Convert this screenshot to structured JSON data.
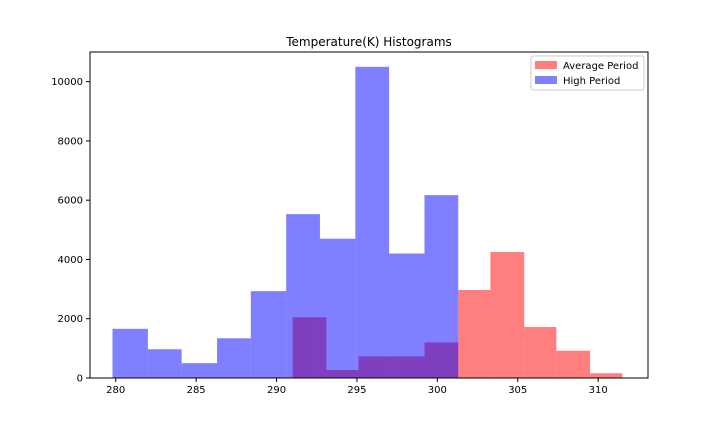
{
  "chart_data": {
    "type": "bar",
    "title": "Temperature(K) Histograms",
    "xlabel": "",
    "ylabel": "",
    "xlim": [
      278.4,
      313.1
    ],
    "ylim": [
      0,
      11000
    ],
    "grid": false,
    "legend_position": "top-right",
    "x_ticks": [
      280,
      285,
      290,
      295,
      300,
      305,
      310
    ],
    "y_ticks": [
      0,
      2000,
      4000,
      6000,
      8000,
      10000
    ],
    "x_tick_labels": [
      "280",
      "285",
      "290",
      "295",
      "300",
      "305",
      "310"
    ],
    "y_tick_labels": [
      "0",
      "2000",
      "4000",
      "6000",
      "8000",
      "10000"
    ],
    "series": [
      {
        "name": "Average Period",
        "color": "#ff0000",
        "opacity": 0.5,
        "bin_edges": [
          291.0,
          293.1,
          295.1,
          297.2,
          299.2,
          301.3,
          303.3,
          305.4,
          307.4,
          309.5,
          311.5
        ],
        "values": [
          2050,
          270,
          730,
          730,
          1200,
          2970,
          4250,
          1720,
          920,
          160
        ]
      },
      {
        "name": "High Period",
        "color": "#0000ff",
        "opacity": 0.5,
        "bin_edges": [
          279.8,
          282.0,
          284.1,
          286.3,
          288.4,
          290.6,
          292.7,
          294.9,
          297.0,
          299.2,
          301.3
        ],
        "values": [
          1660,
          970,
          500,
          1340,
          2930,
          5530,
          4700,
          10500,
          4200,
          6170
        ]
      }
    ]
  }
}
